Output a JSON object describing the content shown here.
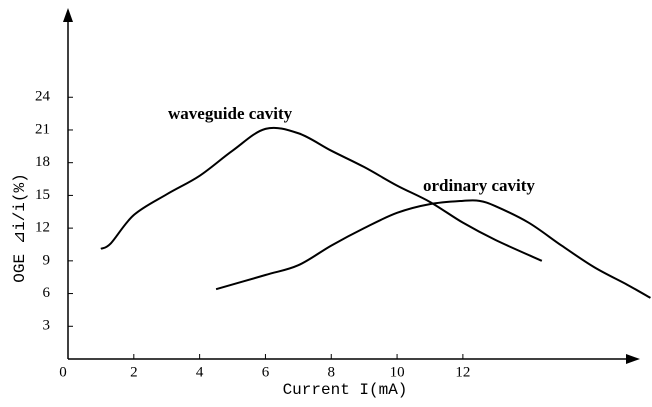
{
  "chart_data": {
    "type": "line",
    "xlabel": "Current I(mA)",
    "ylabel": "OGE ⊿i/i(%)",
    "annotations": [
      "waveguide cavity",
      "ordinary cavity"
    ],
    "xlim": [
      0,
      17.2
    ],
    "ylim": [
      0,
      32
    ],
    "xticks": [
      0,
      2,
      4,
      6,
      8,
      10,
      12
    ],
    "yticks": [
      3,
      6,
      9,
      12,
      15,
      18,
      21,
      24
    ],
    "series": [
      {
        "color": "#000000",
        "x": [
          1,
          1.3,
          2,
          3,
          4,
          5,
          6,
          7,
          8,
          9,
          10,
          11,
          12,
          13,
          14.4
        ],
        "values": [
          10.1,
          10.6,
          13.2,
          15.1,
          16.8,
          19.1,
          21.1,
          20.7,
          19.1,
          17.6,
          15.9,
          14.4,
          12.5,
          10.9,
          9.0
        ]
      },
      {
        "color": "#000000",
        "x": [
          4.5,
          6,
          7,
          8,
          9,
          10,
          11,
          12,
          12.5,
          13,
          14,
          15,
          16,
          17,
          17.7
        ],
        "values": [
          6.4,
          7.7,
          8.6,
          10.4,
          12.0,
          13.4,
          14.2,
          14.5,
          14.5,
          14.0,
          12.5,
          10.4,
          8.4,
          6.8,
          5.6
        ]
      }
    ]
  }
}
